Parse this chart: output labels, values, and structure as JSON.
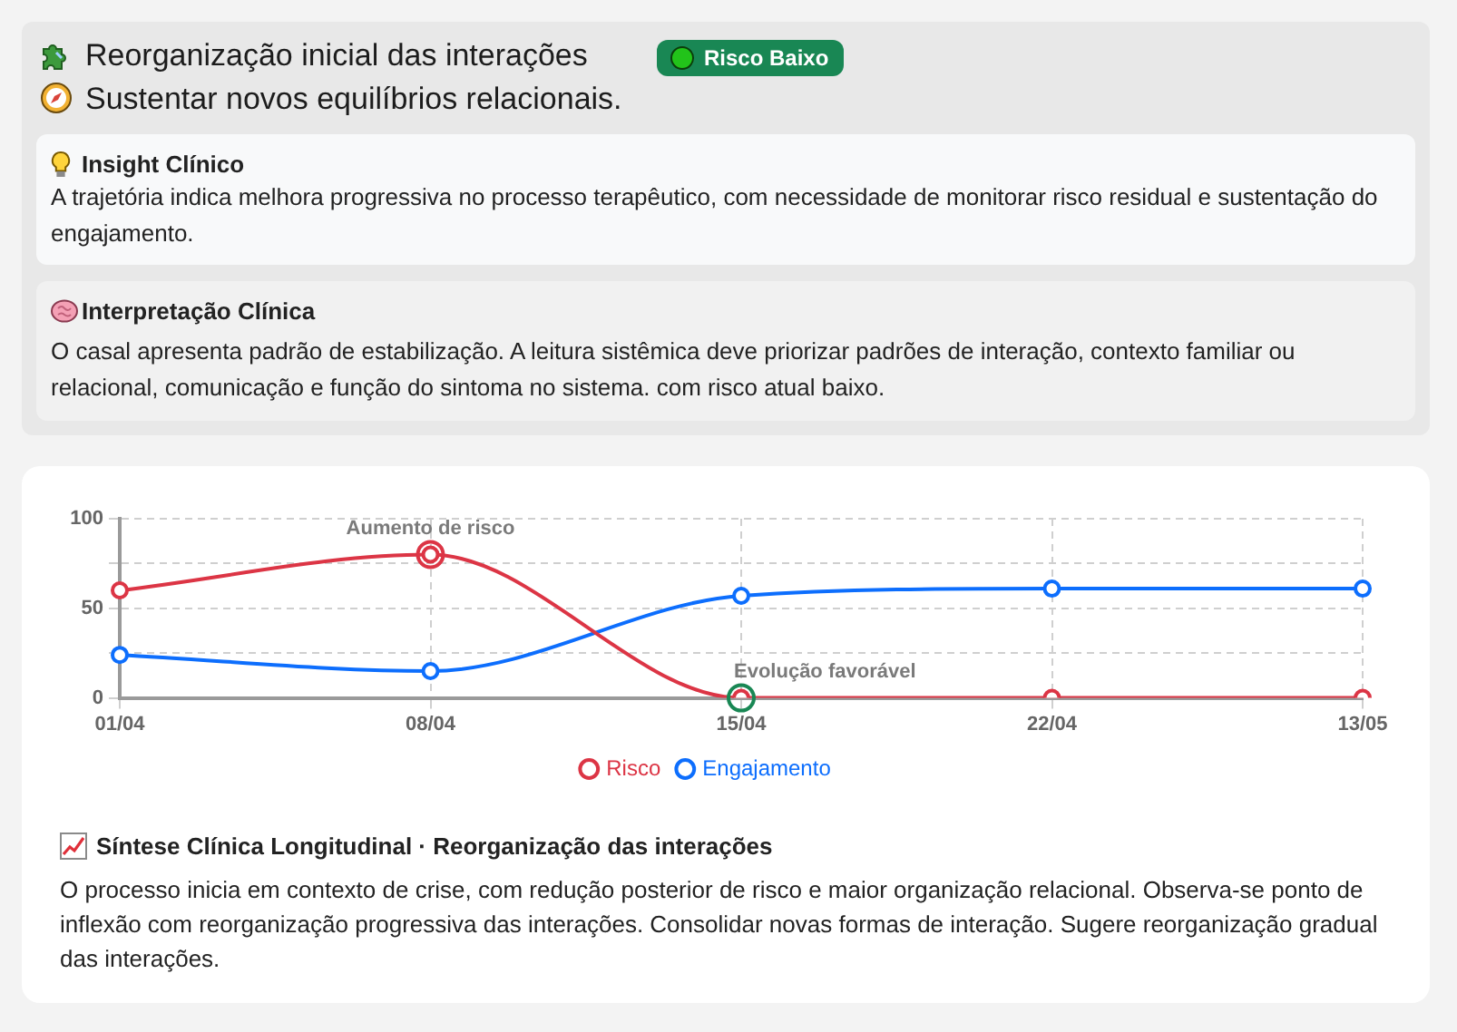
{
  "chart_data": {
    "type": "line",
    "title": "Reorganização inicial das interações",
    "subtitle": "Sustentar novos equilíbrios relacionais.",
    "categories": [
      "01/04",
      "08/04",
      "15/04",
      "22/04",
      "13/05"
    ],
    "series": [
      {
        "name": "Risco",
        "color": "#dc3545",
        "values": [
          60,
          80,
          0,
          0,
          0
        ]
      },
      {
        "name": "Engajamento",
        "color": "#0d6efd",
        "values": [
          24,
          15,
          57,
          61,
          61
        ]
      }
    ],
    "ylim": [
      0,
      100
    ],
    "yticks": [
      0,
      {
        "value": 25,
        "label": null
      },
      50,
      {
        "value": 75,
        "label": null
      },
      100
    ],
    "grid": true,
    "legend": "bottom",
    "marker": "circle",
    "line_style": "solid",
    "annotations": [
      "Risco Baixo",
      "Insight Clínico",
      "A trajetória indica melhora progressiva no processo terapêutico, com necessidade de monitorar risco residual e sustentação do engajamento.",
      "Interpretação Clínica",
      "O casal apresenta padrão de estabilização. A leitura sistêmica deve priorizar padrões de interação, contexto familiar ou relacional, comunicação e função do sintoma no sistema. com risco atual baixo.",
      "Síntese Clínica Longitudinal · Reorganização das interações",
      "O processo inicia em contexto de crise, com redução posterior de risco e maior organização relacional. Observa-se ponto de inflexão com reorganização progressiva das interações. Consolidar novas formas de interação. Sugere reorganização gradual das interações.",
      {
        "text": "Aumento de risco",
        "x": "08/04",
        "y": 80
      },
      {
        "text": "Evolução favorável",
        "x": "15/04",
        "y": 0
      }
    ]
  }
}
